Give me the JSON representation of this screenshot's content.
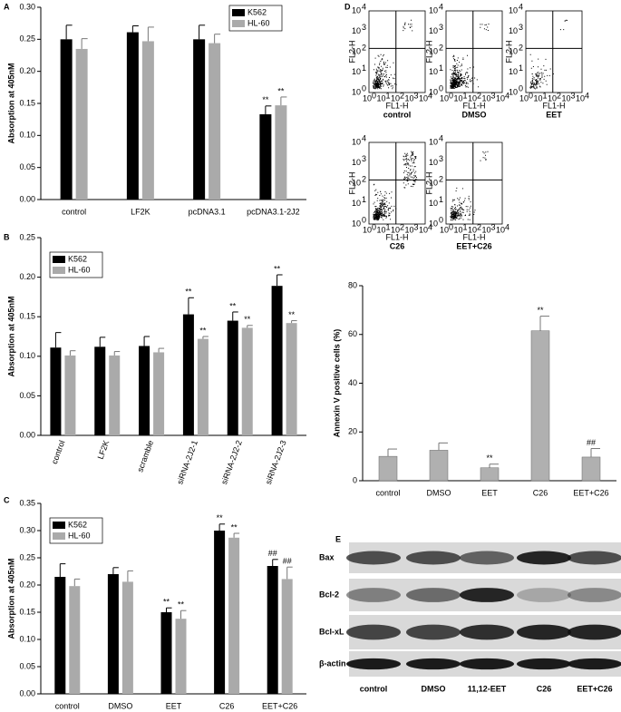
{
  "panel_labels": [
    "A",
    "B",
    "C",
    "D",
    "E"
  ],
  "chart_data": [
    {
      "type": "bar",
      "ylabel": "Absorption at 405nM",
      "categories": [
        "control",
        "LF2K",
        "pcDNA3.1",
        "pcDNA3.1-2J2"
      ],
      "series": [
        {
          "name": "K562",
          "color": "#000000",
          "values": [
            0.25,
            0.261,
            0.25,
            0.133
          ],
          "errors": [
            0.022,
            0.01,
            0.022,
            0.013
          ],
          "annotations": [
            null,
            null,
            null,
            "**"
          ]
        },
        {
          "name": "HL-60",
          "color": "#aaaaaa",
          "values": [
            0.235,
            0.247,
            0.244,
            0.147
          ],
          "errors": [
            0.016,
            0.022,
            0.014,
            0.013
          ],
          "annotations": [
            null,
            null,
            null,
            "**"
          ]
        }
      ],
      "ylim": [
        0,
        0.3
      ],
      "yticks": [
        {
          "value": 0,
          "label": "0.00"
        },
        {
          "value": 0.05,
          "label": "0.05"
        },
        {
          "value": 0.1,
          "label": "0.10"
        },
        {
          "value": 0.15,
          "label": "0.15"
        },
        {
          "value": 0.2,
          "label": "0.20"
        },
        {
          "value": 0.25,
          "label": "0.25"
        },
        {
          "value": 0.3,
          "label": "0.30"
        }
      ],
      "legend": "upper right"
    },
    {
      "type": "bar",
      "ylabel": "Absorption at 405nM",
      "categories": [
        "control",
        "LF2K",
        "scramble",
        "siRNA-2J2-1",
        "siRNA-2J2-2",
        "siRNA-2J2-3"
      ],
      "series": [
        {
          "name": "K562",
          "color": "#000000",
          "values": [
            0.111,
            0.112,
            0.113,
            0.153,
            0.145,
            0.189
          ],
          "errors": [
            0.019,
            0.012,
            0.012,
            0.021,
            0.011,
            0.014
          ],
          "annotations": [
            null,
            null,
            null,
            "**",
            "**",
            "**"
          ]
        },
        {
          "name": "HL-60",
          "color": "#aaaaaa",
          "values": [
            0.101,
            0.101,
            0.105,
            0.122,
            0.136,
            0.142
          ],
          "errors": [
            0.006,
            0.005,
            0.005,
            0.003,
            0.003,
            0.003
          ],
          "annotations": [
            null,
            null,
            null,
            "**",
            "**",
            "**"
          ]
        }
      ],
      "ylim": [
        0,
        0.25
      ],
      "yticks": [
        {
          "value": 0,
          "label": "0.00"
        },
        {
          "value": 0.05,
          "label": "0.05"
        },
        {
          "value": 0.1,
          "label": "0.10"
        },
        {
          "value": 0.15,
          "label": "0.15"
        },
        {
          "value": 0.2,
          "label": "0.20"
        },
        {
          "value": 0.25,
          "label": "0.25"
        }
      ],
      "legend": "upper left"
    },
    {
      "type": "bar",
      "ylabel": "Absorption at 405nM",
      "categories": [
        "control",
        "DMSO",
        "EET",
        "C26",
        "EET+C26"
      ],
      "series": [
        {
          "name": "K562",
          "color": "#000000",
          "values": [
            0.215,
            0.22,
            0.15,
            0.3,
            0.235
          ],
          "errors": [
            0.024,
            0.012,
            0.008,
            0.012,
            0.012
          ],
          "annotations": [
            null,
            null,
            "**",
            "**",
            "##"
          ]
        },
        {
          "name": "HL-60",
          "color": "#aaaaaa",
          "values": [
            0.198,
            0.206,
            0.138,
            0.287,
            0.211
          ],
          "errors": [
            0.013,
            0.02,
            0.015,
            0.008,
            0.022
          ],
          "annotations": [
            null,
            null,
            "**",
            "**",
            "##"
          ]
        }
      ],
      "ylim": [
        0,
        0.35
      ],
      "yticks": [
        {
          "value": 0,
          "label": "0.00"
        },
        {
          "value": 0.05,
          "label": "0.05"
        },
        {
          "value": 0.1,
          "label": "0.10"
        },
        {
          "value": 0.15,
          "label": "0.15"
        },
        {
          "value": 0.2,
          "label": "0.20"
        },
        {
          "value": 0.25,
          "label": "0.25"
        },
        {
          "value": 0.3,
          "label": "0.30"
        },
        {
          "value": 0.35,
          "label": "0.35"
        }
      ],
      "legend": "upper left"
    },
    {
      "type": "bar",
      "ylabel": "Annexin V positive cells (%)",
      "categories": [
        "control",
        "DMSO",
        "EET",
        "C26",
        "EET+C26"
      ],
      "values": [
        10,
        12.5,
        5.3,
        61.5,
        9.7
      ],
      "errors": [
        3,
        3,
        1.5,
        6,
        3.5
      ],
      "annotations": [
        null,
        null,
        "**",
        "**",
        "##"
      ],
      "color": "#b0b0b0",
      "ylim": [
        0,
        80
      ],
      "yticks": [
        0,
        20,
        40,
        60,
        80
      ]
    }
  ],
  "flow_cytometry": {
    "panels": [
      "control",
      "DMSO",
      "EET",
      "C26",
      "EET+C26"
    ],
    "x_axis_label": "FL1-H",
    "y_axis_label": "FL2-H",
    "tick_base": "10",
    "tick_exponents": [
      0,
      1,
      2,
      3,
      4
    ]
  },
  "western_blot": {
    "proteins": [
      "Bax",
      "Bcl-2",
      "Bcl-xL",
      "β-actin"
    ],
    "lanes": [
      "control",
      "DMSO",
      "11,12-EET",
      "C26",
      "EET+C26"
    ]
  }
}
